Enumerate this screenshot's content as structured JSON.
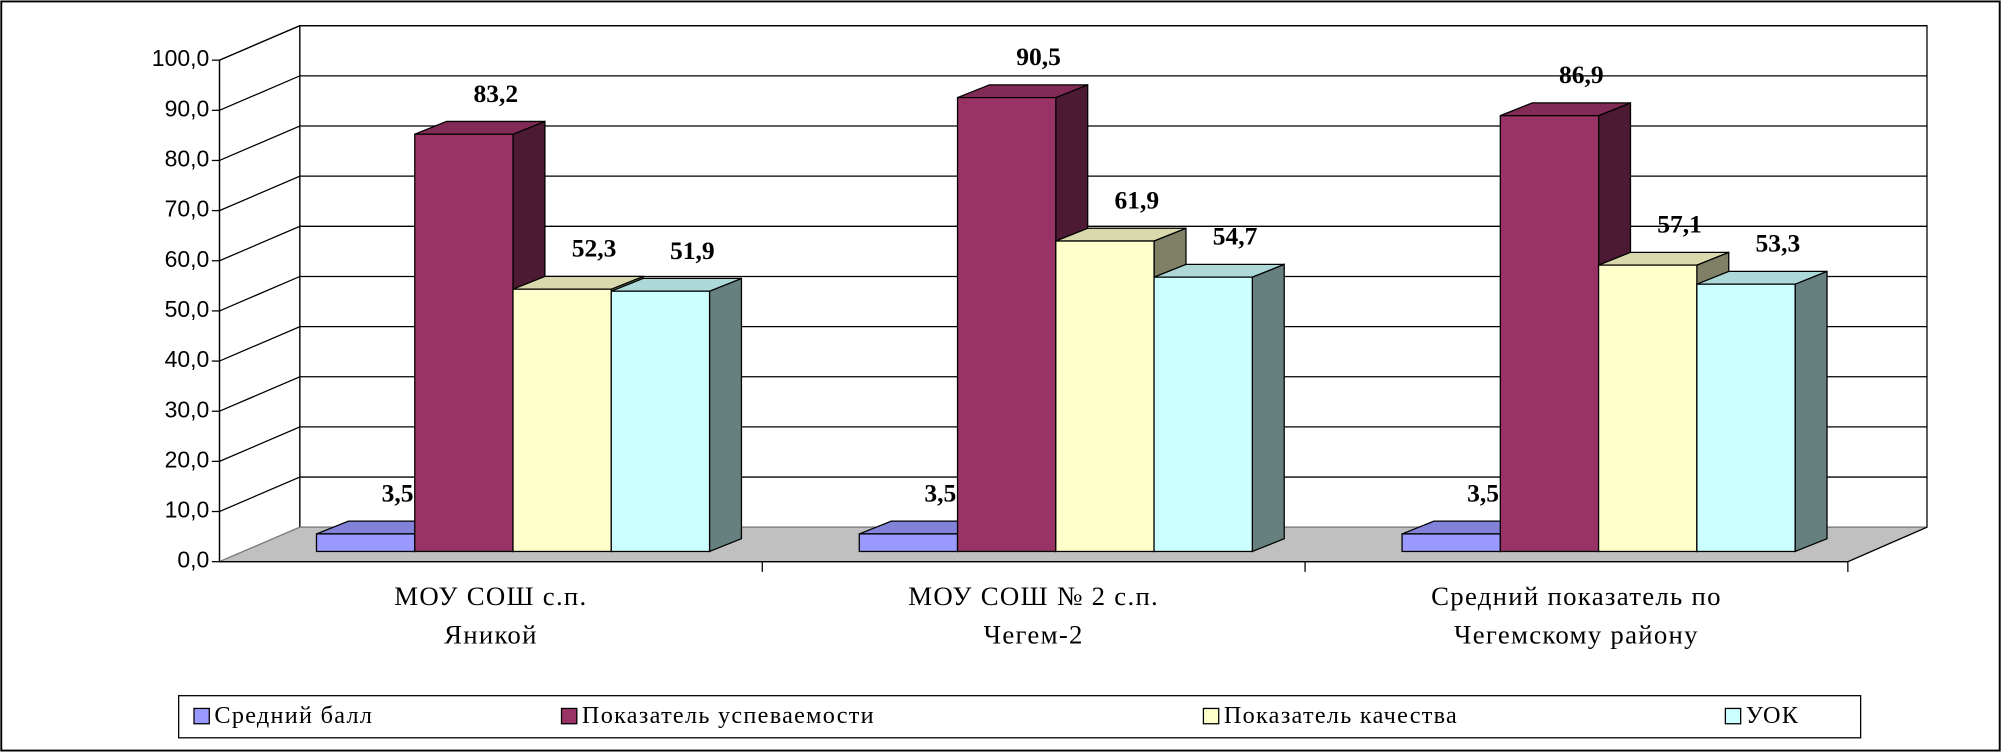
{
  "chart_data": {
    "type": "bar3d",
    "categories": [
      "МОУ СОШ    с.п.\nЯникой",
      "МОУ СОШ № 2 с.п.\nЧегем-2",
      "Средний показатель по\nЧегемскому району"
    ],
    "series": [
      {
        "name": "Средний балл",
        "color": "#9999ff",
        "values": [
          3.5,
          3.5,
          3.5
        ],
        "value_labels": [
          "3,5",
          "3,5",
          "3,5"
        ]
      },
      {
        "name": "Показатель успеваемости",
        "color": "#993366",
        "values": [
          83.2,
          90.5,
          86.9
        ],
        "value_labels": [
          "83,2",
          "90,5",
          "86,9"
        ]
      },
      {
        "name": "Показатель качества",
        "color": "#ffffcc",
        "values": [
          52.3,
          61.9,
          57.1
        ],
        "value_labels": [
          "52,3",
          "61,9",
          "57,1"
        ]
      },
      {
        "name": "УОК",
        "color": "#ccffff",
        "values": [
          51.9,
          54.7,
          53.3
        ],
        "value_labels": [
          "51,9",
          "54,7",
          "53,3"
        ]
      }
    ],
    "ylim": [
      0,
      100
    ],
    "yticks": [
      {
        "value": 0,
        "label": "0,0"
      },
      {
        "value": 10,
        "label": "10,0"
      },
      {
        "value": 20,
        "label": "20,0"
      },
      {
        "value": 30,
        "label": "30,0"
      },
      {
        "value": 40,
        "label": "40,0"
      },
      {
        "value": 50,
        "label": "50,0"
      },
      {
        "value": 60,
        "label": "60,0"
      },
      {
        "value": 70,
        "label": "70,0"
      },
      {
        "value": 80,
        "label": "80,0"
      },
      {
        "value": 90,
        "label": "90,0"
      },
      {
        "value": 100,
        "label": "100,0"
      }
    ],
    "grid": true,
    "legend": "bottom"
  }
}
